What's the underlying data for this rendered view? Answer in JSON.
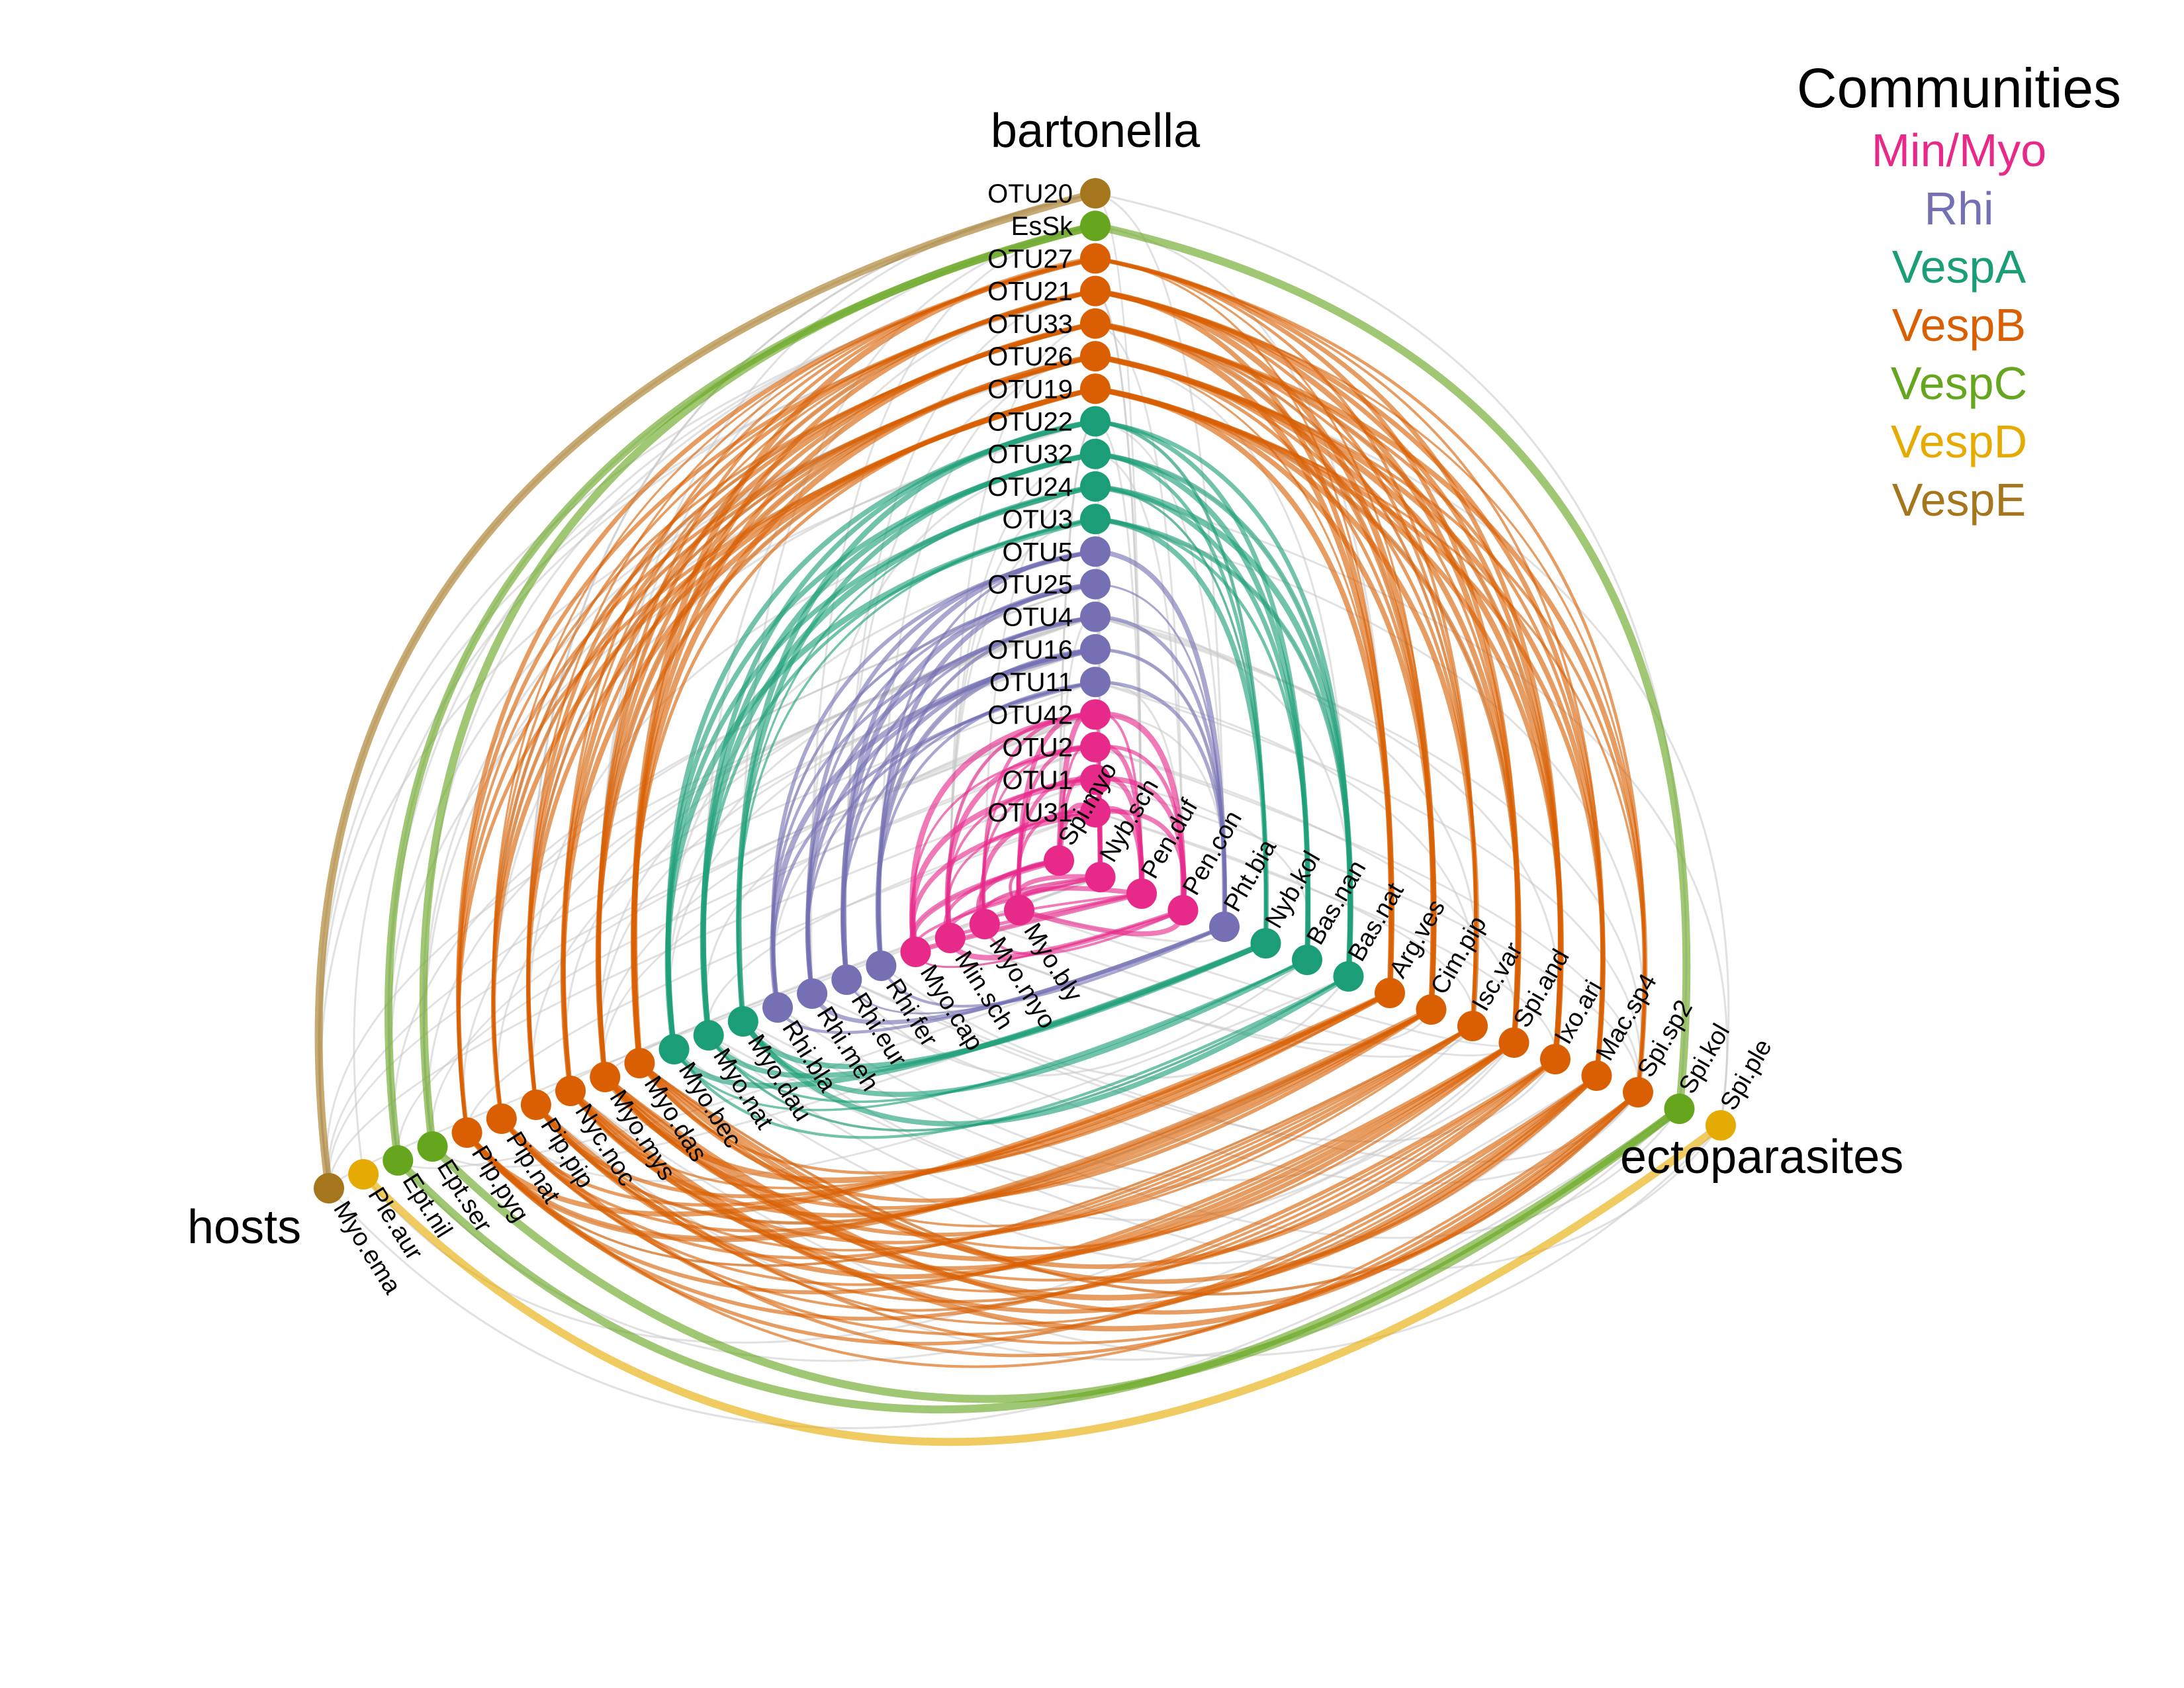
{
  "axes": [
    {
      "name": "bartonella",
      "label": "bartonella"
    },
    {
      "name": "hosts",
      "label": "hosts"
    },
    {
      "name": "ectoparasites",
      "label": "ectoparasites"
    }
  ],
  "legend": {
    "title": "Communities",
    "items": [
      {
        "label": "Min/Myo",
        "color": "#E7298A"
      },
      {
        "label": "Rhi",
        "color": "#7570B3"
      },
      {
        "label": "VespA",
        "color": "#1B9E77"
      },
      {
        "label": "VespB",
        "color": "#D95F02"
      },
      {
        "label": "VespC",
        "color": "#66A61E"
      },
      {
        "label": "VespD",
        "color": "#E6AB02"
      },
      {
        "label": "VespE",
        "color": "#A6761D"
      }
    ]
  },
  "nodes": {
    "bartonella": [
      {
        "label": "OTU20",
        "community": "VespE"
      },
      {
        "label": "EsSk",
        "community": "VespC"
      },
      {
        "label": "OTU27",
        "community": "VespB"
      },
      {
        "label": "OTU21",
        "community": "VespB"
      },
      {
        "label": "OTU33",
        "community": "VespB"
      },
      {
        "label": "OTU26",
        "community": "VespB"
      },
      {
        "label": "OTU19",
        "community": "VespB"
      },
      {
        "label": "OTU22",
        "community": "VespA"
      },
      {
        "label": "OTU32",
        "community": "VespA"
      },
      {
        "label": "OTU24",
        "community": "VespA"
      },
      {
        "label": "OTU3",
        "community": "VespA"
      },
      {
        "label": "OTU5",
        "community": "Rhi"
      },
      {
        "label": "OTU25",
        "community": "Rhi"
      },
      {
        "label": "OTU4",
        "community": "Rhi"
      },
      {
        "label": "OTU16",
        "community": "Rhi"
      },
      {
        "label": "OTU11",
        "community": "Rhi"
      },
      {
        "label": "OTU42",
        "community": "Min/Myo"
      },
      {
        "label": "OTU2",
        "community": "Min/Myo"
      },
      {
        "label": "OTU1",
        "community": "Min/Myo"
      },
      {
        "label": "OTU31",
        "community": "Min/Myo"
      }
    ],
    "hosts": [
      {
        "label": "Myo.ema",
        "community": "VespE"
      },
      {
        "label": "Ple.aur",
        "community": "VespD"
      },
      {
        "label": "Ept.nil",
        "community": "VespC"
      },
      {
        "label": "Ept.ser",
        "community": "VespC"
      },
      {
        "label": "Pip.pyg",
        "community": "VespB"
      },
      {
        "label": "Pip.nat",
        "community": "VespB"
      },
      {
        "label": "Pip.pip",
        "community": "VespB"
      },
      {
        "label": "Nyc.noc",
        "community": "VespB"
      },
      {
        "label": "Myo.mys",
        "community": "VespB"
      },
      {
        "label": "Myo.das",
        "community": "VespB"
      },
      {
        "label": "Myo.bec",
        "community": "VespA"
      },
      {
        "label": "Myo.nat",
        "community": "VespA"
      },
      {
        "label": "Myo.dau",
        "community": "VespA"
      },
      {
        "label": "Rhi.bla",
        "community": "Rhi"
      },
      {
        "label": "Rhi.meh",
        "community": "Rhi"
      },
      {
        "label": "Rhi.eur",
        "community": "Rhi"
      },
      {
        "label": "Rhi.fer",
        "community": "Rhi"
      },
      {
        "label": "Myo.cap",
        "community": "Min/Myo"
      },
      {
        "label": "Min.sch",
        "community": "Min/Myo"
      },
      {
        "label": "Myo.myo",
        "community": "Min/Myo"
      },
      {
        "label": "Myo.bly",
        "community": "Min/Myo"
      }
    ],
    "ectoparasites": [
      {
        "label": "Spi.myo",
        "community": "Min/Myo"
      },
      {
        "label": "Nyb.sch",
        "community": "Min/Myo"
      },
      {
        "label": "Pen.duf",
        "community": "Min/Myo"
      },
      {
        "label": "Pen.con",
        "community": "Min/Myo"
      },
      {
        "label": "Pht.bia",
        "community": "Rhi"
      },
      {
        "label": "Nyb.kol",
        "community": "VespA"
      },
      {
        "label": "Bas.nan",
        "community": "VespA"
      },
      {
        "label": "Bas.nat",
        "community": "VespA"
      },
      {
        "label": "Arg.ves",
        "community": "VespB"
      },
      {
        "label": "Cim.pip",
        "community": "VespB"
      },
      {
        "label": "Isc.var",
        "community": "VespB"
      },
      {
        "label": "Spi.and",
        "community": "VespB"
      },
      {
        "label": "Ixo.ari",
        "community": "VespB"
      },
      {
        "label": "Mac.sp4",
        "community": "VespB"
      },
      {
        "label": "Spi.sp2",
        "community": "VespB"
      },
      {
        "label": "Spi.kol",
        "community": "VespC"
      },
      {
        "label": "Spi.ple",
        "community": "VespD"
      }
    ]
  }
}
